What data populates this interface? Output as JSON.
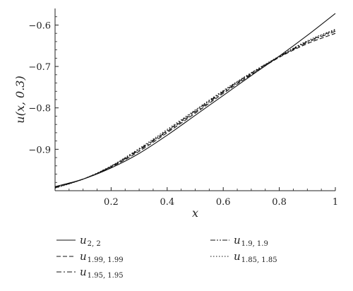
{
  "chart_data": {
    "type": "line",
    "xlabel": "x",
    "ylabel": "u(x, 0.3)",
    "xlim": [
      0,
      1
    ],
    "ylim": [
      -1.0,
      -0.56
    ],
    "x_ticks": [
      0.2,
      0.4,
      0.6,
      0.8,
      1
    ],
    "x_tick_labels": [
      "0.2",
      "0.4",
      "0.6",
      "0.8",
      "1"
    ],
    "y_ticks": [
      -0.9,
      -0.8,
      -0.7,
      -0.6
    ],
    "y_tick_labels": [
      "−0.9",
      "−0.8",
      "−0.7",
      "−0.6"
    ],
    "grid": false,
    "legend_position": "bottom",
    "x": [
      0,
      0.1,
      0.2,
      0.3,
      0.4,
      0.5,
      0.6,
      0.7,
      0.8,
      0.9,
      1.0
    ],
    "series": [
      {
        "name_main": "u",
        "name_sub": "2, 2",
        "style": "solid",
        "values": [
          -0.99,
          -0.972,
          -0.945,
          -0.91,
          -0.866,
          -0.818,
          -0.77,
          -0.722,
          -0.675,
          -0.625,
          -0.572
        ]
      },
      {
        "name_main": "u",
        "name_sub": "1.99, 1.99",
        "style": "dashed",
        "values": [
          -0.991,
          -0.972,
          -0.943,
          -0.905,
          -0.86,
          -0.813,
          -0.765,
          -0.72,
          -0.678,
          -0.645,
          -0.62
        ]
      },
      {
        "name_main": "u",
        "name_sub": "1.95, 1.95",
        "style": "dashdot",
        "values": [
          -0.992,
          -0.972,
          -0.942,
          -0.902,
          -0.857,
          -0.81,
          -0.762,
          -0.718,
          -0.677,
          -0.642,
          -0.615
        ]
      },
      {
        "name_main": "u",
        "name_sub": "1.9, 1.9",
        "style": "dashdotdot",
        "values": [
          -0.993,
          -0.972,
          -0.941,
          -0.9,
          -0.855,
          -0.807,
          -0.76,
          -0.716,
          -0.676,
          -0.64,
          -0.612
        ]
      },
      {
        "name_main": "u",
        "name_sub": "1.85, 1.85",
        "style": "dotted",
        "values": [
          -0.994,
          -0.972,
          -0.94,
          -0.898,
          -0.852,
          -0.805,
          -0.758,
          -0.715,
          -0.675,
          -0.638,
          -0.61
        ]
      }
    ]
  }
}
